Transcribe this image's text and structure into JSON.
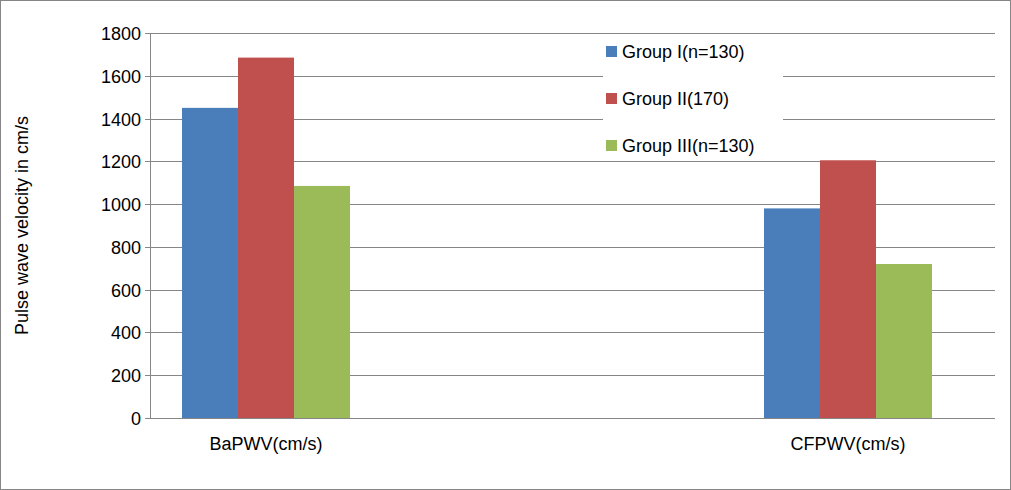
{
  "chart_data": {
    "type": "bar",
    "y_label": "Pulse wave velocity in cm/s",
    "categories": [
      "BaPWV(cm/s)",
      "CFPWV(cm/s)"
    ],
    "series": [
      {
        "name": "Group I(n=130)",
        "color": "#4a7ebb",
        "values": [
          1450,
          980
        ]
      },
      {
        "name": "Group II(170)",
        "color": "#c0504d",
        "values": [
          1685,
          1205
        ]
      },
      {
        "name": "Group III(n=130)",
        "color": "#9bbb59",
        "values": [
          1085,
          720
        ]
      }
    ],
    "ylim": [
      0,
      1800
    ],
    "yticks": [
      0,
      200,
      400,
      600,
      800,
      1000,
      1200,
      1400,
      1600,
      1800
    ],
    "grid": true,
    "legend": "upper right"
  }
}
